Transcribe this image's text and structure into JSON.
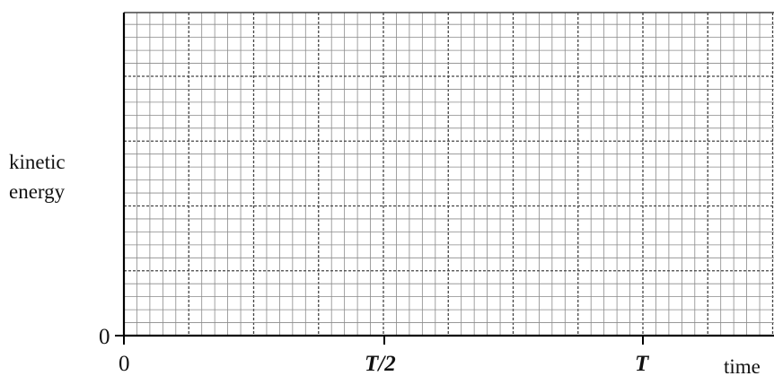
{
  "figure": {
    "y_axis_label_line1": "kinetic",
    "y_axis_label_line2": "energy",
    "y_origin_label": "0",
    "x_origin_label": "0",
    "x_tick_half_period_label": "T/2",
    "x_tick_period_label": "T",
    "x_axis_label": "time",
    "colors": {
      "grid_major": "#444444",
      "grid_minor": "#8a8a8a",
      "axis": "#000000",
      "text": "#111111"
    }
  }
}
